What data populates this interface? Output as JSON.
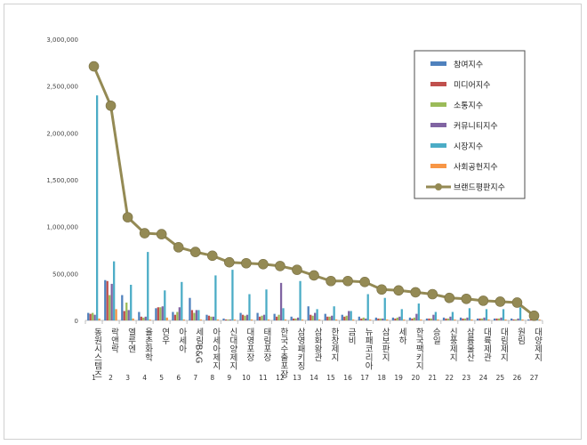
{
  "chart_data": {
    "type": "bar",
    "title": "",
    "xlabel": "",
    "ylabel": "",
    "ylim": [
      0,
      3000000
    ],
    "yticks": [
      "0",
      "500,000",
      "1,000,000",
      "1,500,000",
      "2,000,000",
      "2,500,000",
      "3,000,000"
    ],
    "grid": false,
    "legend_position": "top-right",
    "categories": [
      "동원시스템즈",
      "락앤락",
      "엘루엔",
      "율촌화학",
      "연우",
      "아세아",
      "세림B&G",
      "아세아제지",
      "신대양제지",
      "대영포장",
      "태림포장",
      "한국수출포장",
      "삼영패키징",
      "삼화왕관",
      "한창제지",
      "금비",
      "뉴패코리아",
      "삼보판지",
      "세하",
      "한국팩키지",
      "승일",
      "신풍제지",
      "삼륭물산",
      "대륙제관",
      "대림제지",
      "원림",
      "대양제지"
    ],
    "ranks": [
      "1",
      "2",
      "3",
      "4",
      "5",
      "6",
      "7",
      "8",
      "9",
      "10",
      "11",
      "12",
      "13",
      "14",
      "15",
      "16",
      "17",
      "18",
      "19",
      "20",
      "21",
      "22",
      "23",
      "24",
      "25",
      "26",
      "27"
    ],
    "series": [
      {
        "name": "참여지수",
        "color": "#4f81bd",
        "type": "bar",
        "values": [
          80000,
          430000,
          270000,
          90000,
          130000,
          90000,
          240000,
          60000,
          20000,
          80000,
          80000,
          70000,
          40000,
          150000,
          70000,
          60000,
          40000,
          30000,
          30000,
          30000,
          20000,
          30000,
          30000,
          20000,
          20000,
          20000,
          10000
        ]
      },
      {
        "name": "미디어지수",
        "color": "#c0504d",
        "type": "bar",
        "values": [
          70000,
          420000,
          100000,
          40000,
          140000,
          60000,
          110000,
          50000,
          10000,
          60000,
          40000,
          40000,
          20000,
          60000,
          40000,
          40000,
          20000,
          20000,
          20000,
          20000,
          20000,
          20000,
          20000,
          20000,
          20000,
          10000,
          10000
        ]
      },
      {
        "name": "소통지수",
        "color": "#9bbb59",
        "type": "bar",
        "values": [
          80000,
          270000,
          190000,
          30000,
          140000,
          90000,
          80000,
          40000,
          10000,
          50000,
          50000,
          60000,
          20000,
          50000,
          40000,
          50000,
          30000,
          20000,
          30000,
          30000,
          20000,
          20000,
          20000,
          20000,
          20000,
          10000,
          10000
        ]
      },
      {
        "name": "커뮤니티지수",
        "color": "#8064a2",
        "type": "bar",
        "values": [
          60000,
          390000,
          110000,
          40000,
          150000,
          140000,
          110000,
          40000,
          10000,
          60000,
          60000,
          400000,
          30000,
          80000,
          50000,
          100000,
          20000,
          20000,
          40000,
          70000,
          60000,
          40000,
          30000,
          30000,
          30000,
          20000,
          10000
        ]
      },
      {
        "name": "시장지수",
        "color": "#4bacc6",
        "type": "bar",
        "values": [
          2400000,
          630000,
          380000,
          730000,
          320000,
          410000,
          110000,
          480000,
          540000,
          280000,
          330000,
          130000,
          420000,
          120000,
          150000,
          100000,
          280000,
          240000,
          120000,
          180000,
          90000,
          90000,
          130000,
          120000,
          120000,
          140000,
          60000
        ]
      },
      {
        "name": "사회공헌지수",
        "color": "#f79646",
        "type": "bar",
        "values": [
          20000,
          120000,
          20000,
          10000,
          30000,
          10000,
          10000,
          10000,
          10000,
          10000,
          10000,
          10000,
          10000,
          10000,
          10000,
          10000,
          10000,
          10000,
          10000,
          10000,
          10000,
          10000,
          10000,
          10000,
          10000,
          10000,
          10000
        ]
      },
      {
        "name": "브랜드평판지수",
        "color": "#948a54",
        "type": "line",
        "values": [
          2710000,
          2290000,
          1100000,
          930000,
          920000,
          780000,
          730000,
          690000,
          620000,
          610000,
          600000,
          580000,
          540000,
          480000,
          420000,
          420000,
          410000,
          330000,
          320000,
          300000,
          280000,
          240000,
          230000,
          210000,
          200000,
          190000,
          50000
        ]
      }
    ]
  }
}
